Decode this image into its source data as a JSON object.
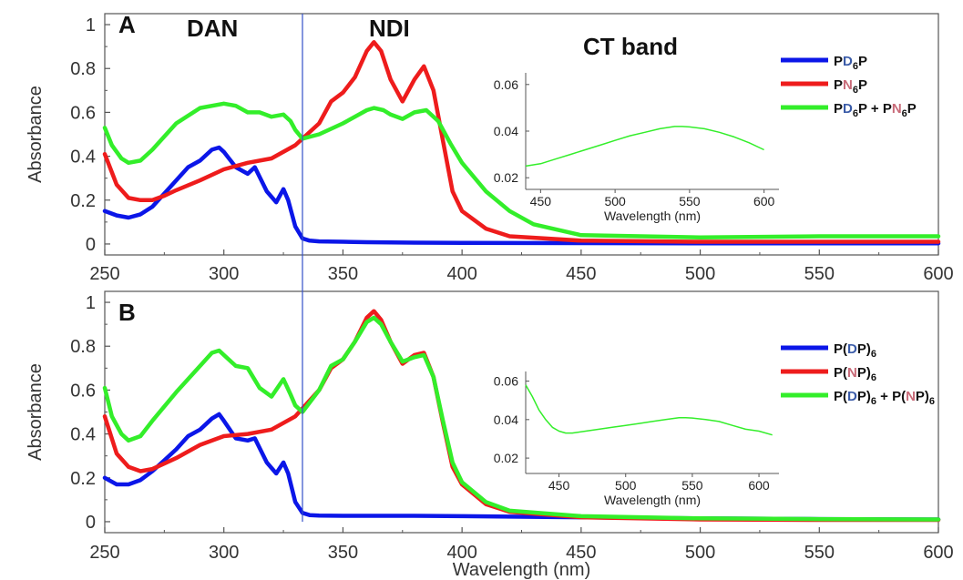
{
  "colors": {
    "blue": "#0b16e8",
    "red": "#ee1c1c",
    "green": "#33ee2a",
    "letter_blue": "#3a5ba8",
    "letter_red": "#c86a78",
    "divider": "#3350c8"
  },
  "annotations": {
    "panel_a": "A",
    "panel_b": "B",
    "dan": "DAN",
    "ndi": "NDI",
    "ct_band": "CT band",
    "divider_x": 333
  },
  "legend_a": [
    {
      "parts": [
        {
          "t": "P"
        },
        {
          "t": "D",
          "c": "letter_blue"
        },
        {
          "t": "6",
          "sub": true
        },
        {
          "t": "P"
        }
      ],
      "color": "blue"
    },
    {
      "parts": [
        {
          "t": "P"
        },
        {
          "t": "N",
          "c": "letter_red"
        },
        {
          "t": "6",
          "sub": true
        },
        {
          "t": "P"
        }
      ],
      "color": "red"
    },
    {
      "parts": [
        {
          "t": "P"
        },
        {
          "t": "D",
          "c": "letter_blue"
        },
        {
          "t": "6",
          "sub": true
        },
        {
          "t": "P + P"
        },
        {
          "t": "N",
          "c": "letter_red"
        },
        {
          "t": "6",
          "sub": true
        },
        {
          "t": "P"
        }
      ],
      "color": "green"
    }
  ],
  "legend_b": [
    {
      "parts": [
        {
          "t": "P("
        },
        {
          "t": "D",
          "c": "letter_blue"
        },
        {
          "t": "P)"
        },
        {
          "t": "6",
          "sub": true
        }
      ],
      "color": "blue"
    },
    {
      "parts": [
        {
          "t": "P("
        },
        {
          "t": "N",
          "c": "letter_red"
        },
        {
          "t": "P)"
        },
        {
          "t": "6",
          "sub": true
        }
      ],
      "color": "red"
    },
    {
      "parts": [
        {
          "t": "P("
        },
        {
          "t": "D",
          "c": "letter_blue"
        },
        {
          "t": "P)"
        },
        {
          "t": "6",
          "sub": true
        },
        {
          "t": " + P("
        },
        {
          "t": "N",
          "c": "letter_red"
        },
        {
          "t": "P)"
        },
        {
          "t": "6",
          "sub": true
        }
      ],
      "color": "green"
    }
  ],
  "chart_data": [
    {
      "id": "panel-a",
      "type": "line",
      "xlabel": "Wavelength (nm)",
      "ylabel": "Absorbance",
      "xlim": [
        250,
        600
      ],
      "ylim": [
        -0.05,
        1.05
      ],
      "xticks": [
        250,
        300,
        350,
        400,
        450,
        500,
        550,
        600
      ],
      "yticks": [
        0,
        0.2,
        0.4,
        0.6,
        0.8,
        1
      ],
      "ytick_labels": [
        "0",
        "0.2",
        "0.4",
        "0.6",
        "0.8",
        "1"
      ],
      "series": [
        {
          "color": "blue",
          "x": [
            250,
            255,
            260,
            265,
            270,
            275,
            280,
            285,
            290,
            295,
            298,
            300,
            305,
            310,
            313,
            318,
            322,
            325,
            327,
            330,
            333,
            336,
            340,
            350,
            360,
            370,
            380,
            400,
            450,
            500,
            550,
            600
          ],
          "y": [
            0.15,
            0.13,
            0.12,
            0.135,
            0.17,
            0.23,
            0.29,
            0.35,
            0.38,
            0.43,
            0.44,
            0.42,
            0.35,
            0.32,
            0.35,
            0.24,
            0.19,
            0.25,
            0.2,
            0.08,
            0.025,
            0.015,
            0.012,
            0.01,
            0.008,
            0.007,
            0.006,
            0.005,
            0.004,
            0.003,
            0.003,
            0.003
          ]
        },
        {
          "color": "red",
          "x": [
            250,
            255,
            260,
            265,
            270,
            275,
            280,
            290,
            300,
            310,
            320,
            330,
            340,
            345,
            350,
            355,
            360,
            363,
            366,
            370,
            375,
            380,
            384,
            388,
            392,
            396,
            400,
            410,
            420,
            450,
            500,
            550,
            600
          ],
          "y": [
            0.41,
            0.27,
            0.21,
            0.2,
            0.2,
            0.22,
            0.245,
            0.29,
            0.34,
            0.37,
            0.39,
            0.45,
            0.55,
            0.65,
            0.69,
            0.76,
            0.88,
            0.92,
            0.88,
            0.75,
            0.65,
            0.75,
            0.81,
            0.7,
            0.47,
            0.24,
            0.15,
            0.07,
            0.035,
            0.015,
            0.01,
            0.01,
            0.01
          ]
        },
        {
          "color": "green",
          "x": [
            250,
            253,
            257,
            260,
            265,
            270,
            280,
            290,
            300,
            305,
            310,
            315,
            320,
            325,
            328,
            330,
            333,
            340,
            350,
            360,
            363,
            367,
            370,
            375,
            380,
            385,
            390,
            395,
            400,
            410,
            420,
            430,
            450,
            500,
            550,
            600
          ],
          "y": [
            0.53,
            0.45,
            0.39,
            0.37,
            0.38,
            0.43,
            0.55,
            0.62,
            0.64,
            0.63,
            0.6,
            0.6,
            0.58,
            0.59,
            0.56,
            0.52,
            0.48,
            0.5,
            0.55,
            0.61,
            0.62,
            0.61,
            0.59,
            0.57,
            0.6,
            0.61,
            0.56,
            0.46,
            0.37,
            0.24,
            0.15,
            0.09,
            0.04,
            0.03,
            0.035,
            0.035
          ]
        }
      ],
      "inset": {
        "xlabel": "Wavelength (nm)",
        "xlim": [
          440,
          610
        ],
        "ylim": [
          0.015,
          0.065
        ],
        "xticks": [
          450,
          500,
          550,
          600
        ],
        "yticks": [
          0.02,
          0.04,
          0.06
        ],
        "ytick_labels": [
          "0.02",
          "0.04",
          "0.06"
        ],
        "series": [
          {
            "color": "green",
            "x": [
              440,
              450,
              460,
              470,
              480,
              490,
              500,
              510,
              520,
              530,
              540,
              545,
              550,
              560,
              570,
              580,
              590,
              600
            ],
            "y": [
              0.025,
              0.026,
              0.028,
              0.03,
              0.032,
              0.034,
              0.036,
              0.038,
              0.0395,
              0.041,
              0.042,
              0.042,
              0.0418,
              0.041,
              0.0395,
              0.0375,
              0.035,
              0.032
            ]
          }
        ]
      }
    },
    {
      "id": "panel-b",
      "type": "line",
      "xlabel": "Wavelength (nm)",
      "ylabel": "Absorbance",
      "xlim": [
        250,
        600
      ],
      "ylim": [
        -0.05,
        1.05
      ],
      "xticks": [
        250,
        300,
        350,
        400,
        450,
        500,
        550,
        600
      ],
      "yticks": [
        0,
        0.2,
        0.4,
        0.6,
        0.8,
        1
      ],
      "ytick_labels": [
        "0",
        "0.2",
        "0.4",
        "0.6",
        "0.8",
        "1"
      ],
      "series": [
        {
          "color": "blue",
          "x": [
            250,
            255,
            260,
            265,
            270,
            275,
            280,
            285,
            290,
            295,
            298,
            300,
            305,
            310,
            313,
            318,
            322,
            325,
            327,
            330,
            333,
            336,
            340,
            350,
            360,
            370,
            380,
            400,
            450,
            500,
            550,
            600
          ],
          "y": [
            0.2,
            0.17,
            0.17,
            0.19,
            0.23,
            0.28,
            0.33,
            0.39,
            0.42,
            0.47,
            0.49,
            0.46,
            0.38,
            0.37,
            0.38,
            0.27,
            0.22,
            0.27,
            0.22,
            0.09,
            0.04,
            0.03,
            0.028,
            0.027,
            0.027,
            0.027,
            0.027,
            0.025,
            0.02,
            0.015,
            0.012,
            0.01
          ]
        },
        {
          "color": "red",
          "x": [
            250,
            255,
            260,
            265,
            270,
            280,
            290,
            300,
            310,
            320,
            330,
            340,
            345,
            350,
            355,
            360,
            363,
            366,
            370,
            375,
            380,
            384,
            388,
            392,
            396,
            400,
            410,
            420,
            450,
            500,
            550,
            600
          ],
          "y": [
            0.48,
            0.31,
            0.25,
            0.23,
            0.24,
            0.29,
            0.35,
            0.39,
            0.4,
            0.42,
            0.48,
            0.6,
            0.7,
            0.74,
            0.82,
            0.93,
            0.96,
            0.92,
            0.82,
            0.72,
            0.76,
            0.77,
            0.66,
            0.45,
            0.25,
            0.17,
            0.08,
            0.045,
            0.02,
            0.01,
            0.008,
            0.008
          ]
        },
        {
          "color": "green",
          "x": [
            250,
            253,
            257,
            260,
            265,
            270,
            280,
            290,
            295,
            298,
            300,
            305,
            310,
            315,
            320,
            325,
            328,
            330,
            333,
            340,
            345,
            350,
            355,
            360,
            363,
            366,
            370,
            375,
            380,
            384,
            388,
            392,
            396,
            400,
            410,
            420,
            450,
            500,
            550,
            600
          ],
          "y": [
            0.61,
            0.48,
            0.4,
            0.37,
            0.39,
            0.46,
            0.59,
            0.71,
            0.77,
            0.78,
            0.76,
            0.71,
            0.7,
            0.61,
            0.57,
            0.65,
            0.58,
            0.53,
            0.5,
            0.6,
            0.71,
            0.74,
            0.82,
            0.91,
            0.93,
            0.9,
            0.82,
            0.73,
            0.75,
            0.76,
            0.66,
            0.46,
            0.27,
            0.18,
            0.09,
            0.05,
            0.025,
            0.015,
            0.012,
            0.01
          ]
        }
      ],
      "inset": {
        "xlabel": "Wavelength (nm)",
        "xlim": [
          425,
          615
        ],
        "ylim": [
          0.012,
          0.065
        ],
        "xticks": [
          450,
          500,
          550,
          600
        ],
        "yticks": [
          0.02,
          0.04,
          0.06
        ],
        "ytick_labels": [
          "0.02",
          "0.04",
          "0.06"
        ],
        "series": [
          {
            "color": "green",
            "x": [
              425,
              430,
              435,
              440,
              445,
              450,
              455,
              460,
              470,
              480,
              490,
              500,
              510,
              520,
              530,
              540,
              545,
              550,
              560,
              570,
              580,
              590,
              600,
              610
            ],
            "y": [
              0.058,
              0.052,
              0.045,
              0.04,
              0.036,
              0.034,
              0.033,
              0.033,
              0.034,
              0.035,
              0.036,
              0.037,
              0.038,
              0.039,
              0.04,
              0.041,
              0.041,
              0.0408,
              0.04,
              0.039,
              0.037,
              0.035,
              0.034,
              0.032
            ]
          }
        ]
      }
    }
  ]
}
